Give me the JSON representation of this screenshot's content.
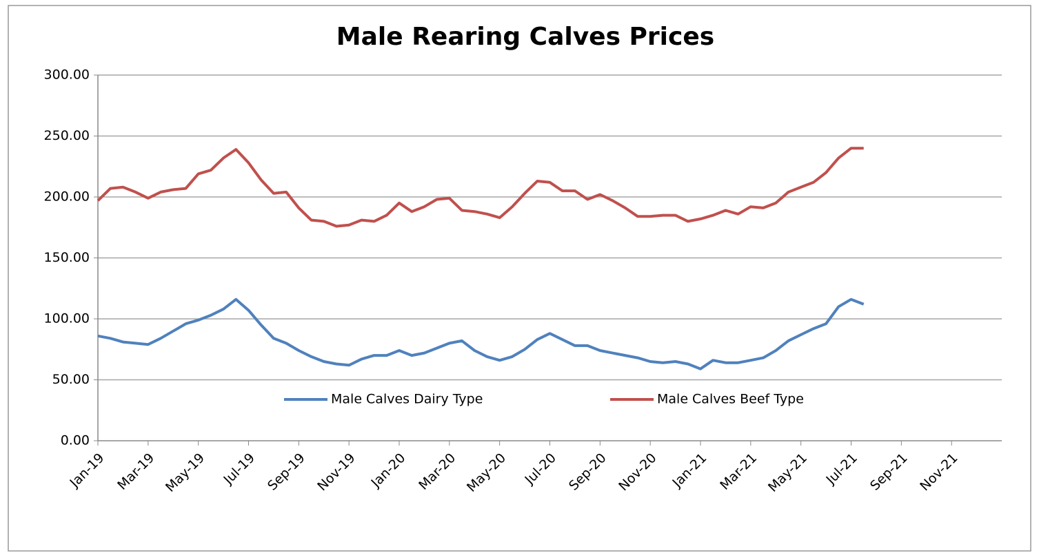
{
  "chart_data": {
    "type": "line",
    "title": "Male Rearing Calves Prices",
    "categories": [
      "Jan-19",
      null,
      null,
      null,
      "Mar-19",
      null,
      null,
      null,
      "May-19",
      null,
      null,
      null,
      "Jul-19",
      null,
      null,
      null,
      "Sep-19",
      null,
      null,
      null,
      "Nov-19",
      null,
      null,
      null,
      "Jan-20",
      null,
      null,
      null,
      "Mar-20",
      null,
      null,
      null,
      "May-20",
      null,
      null,
      null,
      "Jul-20",
      null,
      null,
      null,
      "Sep-20",
      null,
      null,
      null,
      "Nov-20",
      null,
      null,
      null,
      "Jan-21",
      null,
      null,
      null,
      "Mar-21",
      null,
      null,
      null,
      "May-21",
      null,
      null,
      null,
      "Jul-21",
      null,
      null,
      null,
      "Sep-21",
      null,
      null,
      null,
      "Nov-21",
      null,
      null,
      null,
      null
    ],
    "series": [
      {
        "name": "Male Calves Dairy Type",
        "color": "#4f81bd",
        "values": [
          86,
          84,
          81,
          80,
          79,
          84,
          90,
          96,
          99,
          103,
          108,
          116,
          107,
          95,
          84,
          80,
          74,
          69,
          65,
          63,
          62,
          67,
          70,
          70,
          74,
          70,
          72,
          76,
          80,
          82,
          74,
          69,
          66,
          69,
          75,
          83,
          88,
          83,
          78,
          78,
          74,
          72,
          70,
          68,
          65,
          64,
          65,
          63,
          59,
          66,
          64,
          64,
          66,
          68,
          74,
          82,
          87,
          92,
          96,
          110,
          116,
          112,
          null,
          null,
          null,
          null,
          null,
          null,
          null,
          null,
          null,
          null,
          null
        ]
      },
      {
        "name": "Male Calves Beef Type",
        "color": "#c0504d",
        "values": [
          197,
          207,
          208,
          204,
          199,
          204,
          206,
          207,
          219,
          222,
          232,
          239,
          228,
          214,
          203,
          204,
          191,
          181,
          180,
          176,
          177,
          181,
          180,
          185,
          195,
          188,
          192,
          198,
          199,
          189,
          188,
          186,
          183,
          192,
          203,
          213,
          212,
          205,
          205,
          198,
          202,
          197,
          191,
          184,
          184,
          185,
          185,
          180,
          182,
          185,
          189,
          186,
          192,
          191,
          195,
          204,
          208,
          212,
          220,
          232,
          240,
          240,
          null,
          null,
          null,
          null,
          null,
          null,
          null,
          null,
          null,
          null,
          null
        ]
      }
    ],
    "ylim": [
      0,
      300
    ],
    "yticks": [
      {
        "value": 0,
        "label": "0.00"
      },
      {
        "value": 50,
        "label": "50.00"
      },
      {
        "value": 100,
        "label": "100.00"
      },
      {
        "value": 150,
        "label": "150.00"
      },
      {
        "value": 200,
        "label": "200.00"
      },
      {
        "value": 250,
        "label": "250.00"
      },
      {
        "value": 300,
        "label": "300.00"
      }
    ],
    "grid": true
  }
}
